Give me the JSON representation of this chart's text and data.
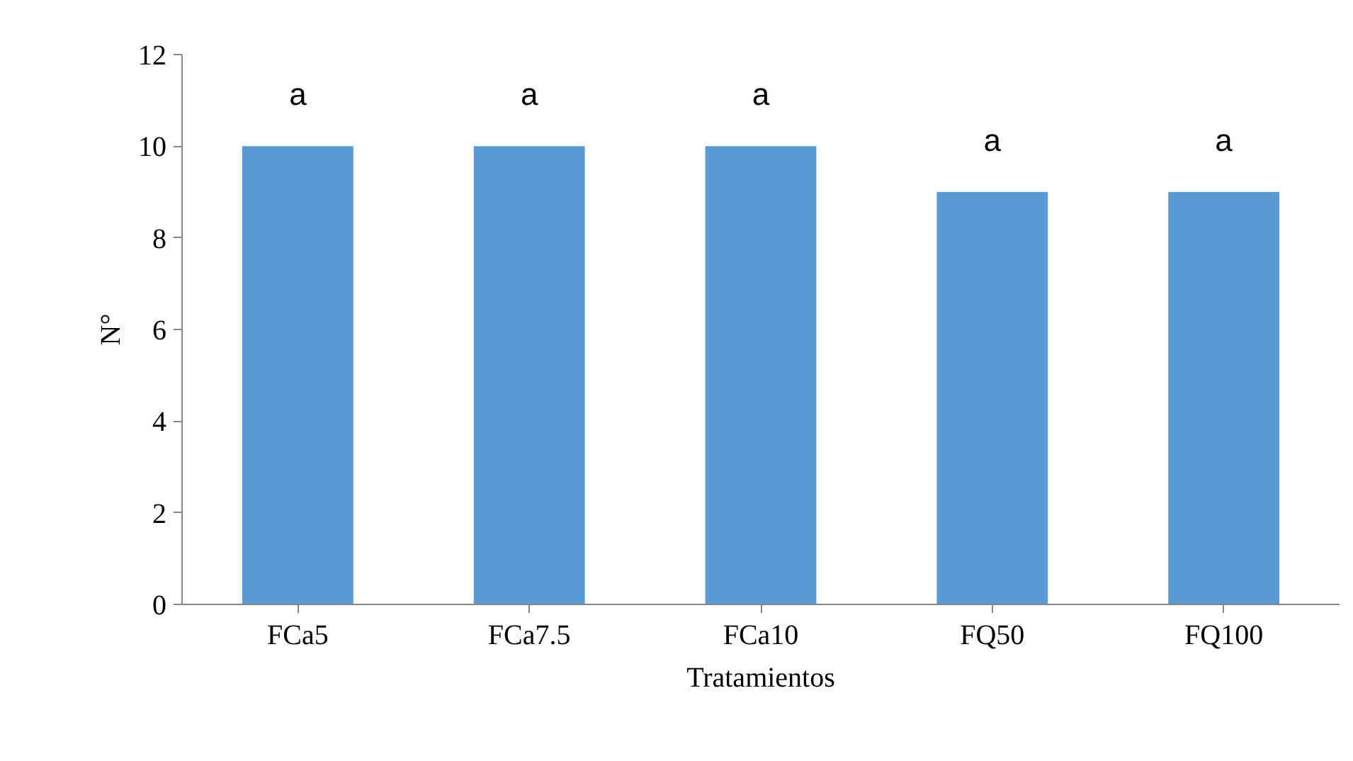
{
  "chart_data": {
    "type": "bar",
    "xlabel": "Tratamientos",
    "ylabel": "N°",
    "categories": [
      "FCa5",
      "FCa7.5",
      "FCa10",
      "FQ50",
      "FQ100"
    ],
    "values": [
      10,
      10,
      10,
      9,
      9
    ],
    "color": "#5b9bd5",
    "ylim": [
      0,
      12
    ],
    "yticks": [
      0,
      2,
      4,
      6,
      8,
      10,
      12
    ],
    "grid": false,
    "annotations": [
      "a",
      "a",
      "a",
      "a",
      "a"
    ]
  }
}
